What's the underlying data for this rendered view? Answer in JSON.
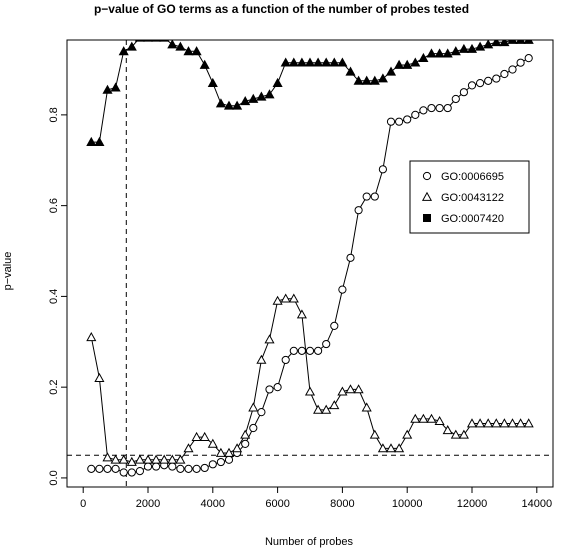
{
  "chart_data": {
    "type": "line",
    "title": "p−value of GO terms as a function of the number of probes tested",
    "xlabel": "Number of probes",
    "ylabel": "p−value",
    "xlim": [
      -500,
      14500
    ],
    "ylim": [
      -0.02,
      0.965
    ],
    "xticks": [
      0,
      2000,
      4000,
      6000,
      8000,
      10000,
      12000,
      14000
    ],
    "xtick_labels": [
      "0",
      "2000",
      "4000",
      "6000",
      "8000",
      "10000",
      "12000",
      "14000"
    ],
    "yticks": [
      0.0,
      0.2,
      0.4,
      0.6,
      0.8
    ],
    "ytick_labels": [
      "0.0",
      "0.2",
      "0.4",
      "0.6",
      "0.8"
    ],
    "reference_lines": [
      {
        "orientation": "horizontal",
        "value": 0.05,
        "style": "dashed"
      },
      {
        "orientation": "vertical",
        "value": 1330,
        "style": "dashed"
      }
    ],
    "legend_position": "right",
    "series": [
      {
        "name": "GO:0006695",
        "marker": "open-circle",
        "x": [
          250,
          500,
          750,
          1000,
          1250,
          1500,
          1750,
          2000,
          2250,
          2500,
          2750,
          3000,
          3250,
          3500,
          3750,
          4000,
          4250,
          4500,
          4750,
          5000,
          5250,
          5500,
          5750,
          6000,
          6250,
          6500,
          6750,
          7000,
          7250,
          7500,
          7750,
          8000,
          8250,
          8500,
          8750,
          9000,
          9250,
          9500,
          9750,
          10000,
          10250,
          10500,
          10750,
          11000,
          11250,
          11500,
          11750,
          12000,
          12250,
          12500,
          12750,
          13000,
          13250,
          13500,
          13750
        ],
        "y": [
          0.02,
          0.02,
          0.02,
          0.02,
          0.012,
          0.012,
          0.015,
          0.025,
          0.025,
          0.028,
          0.025,
          0.02,
          0.02,
          0.02,
          0.022,
          0.03,
          0.035,
          0.04,
          0.055,
          0.075,
          0.11,
          0.145,
          0.195,
          0.2,
          0.26,
          0.28,
          0.28,
          0.28,
          0.28,
          0.295,
          0.335,
          0.415,
          0.485,
          0.59,
          0.62,
          0.62,
          0.68,
          0.785,
          0.785,
          0.79,
          0.8,
          0.81,
          0.815,
          0.815,
          0.815,
          0.835,
          0.85,
          0.865,
          0.87,
          0.875,
          0.88,
          0.89,
          0.9,
          0.915,
          0.925
        ]
      },
      {
        "name": "GO:0043122",
        "marker": "open-triangle",
        "x": [
          250,
          500,
          750,
          1000,
          1250,
          1500,
          1750,
          2000,
          2250,
          2500,
          2750,
          3000,
          3250,
          3500,
          3750,
          4000,
          4250,
          4500,
          4750,
          5000,
          5250,
          5500,
          5750,
          6000,
          6250,
          6500,
          6750,
          7000,
          7250,
          7500,
          7750,
          8000,
          8250,
          8500,
          8750,
          9000,
          9250,
          9500,
          9750,
          10000,
          10250,
          10500,
          10750,
          11000,
          11250,
          11500,
          11750,
          12000,
          12250,
          12500,
          12750,
          13000,
          13250,
          13500,
          13750
        ],
        "y": [
          0.31,
          0.22,
          0.045,
          0.04,
          0.04,
          0.035,
          0.04,
          0.04,
          0.04,
          0.04,
          0.04,
          0.04,
          0.065,
          0.09,
          0.09,
          0.075,
          0.055,
          0.055,
          0.065,
          0.095,
          0.155,
          0.26,
          0.305,
          0.39,
          0.395,
          0.395,
          0.36,
          0.19,
          0.15,
          0.15,
          0.16,
          0.19,
          0.195,
          0.195,
          0.155,
          0.095,
          0.065,
          0.065,
          0.065,
          0.095,
          0.13,
          0.13,
          0.13,
          0.125,
          0.105,
          0.095,
          0.095,
          0.12,
          0.12,
          0.12,
          0.12,
          0.12,
          0.12,
          0.12,
          0.12
        ]
      },
      {
        "name": "GO:0007420",
        "marker": "filled-triangle",
        "x": [
          250,
          500,
          750,
          1000,
          1250,
          1500,
          1750,
          2000,
          2250,
          2500,
          2750,
          3000,
          3250,
          3500,
          3750,
          4000,
          4250,
          4500,
          4750,
          5000,
          5250,
          5500,
          5750,
          6000,
          6250,
          6500,
          6750,
          7000,
          7250,
          7500,
          7750,
          8000,
          8250,
          8500,
          8750,
          9000,
          9250,
          9500,
          9750,
          10000,
          10250,
          10500,
          10750,
          11000,
          11250,
          11500,
          11750,
          12000,
          12250,
          12500,
          12750,
          13000,
          13250,
          13500,
          13750
        ],
        "y": [
          0.74,
          0.74,
          0.855,
          0.86,
          0.94,
          0.95,
          0.97,
          0.97,
          0.97,
          0.97,
          0.955,
          0.95,
          0.94,
          0.94,
          0.91,
          0.87,
          0.825,
          0.82,
          0.82,
          0.83,
          0.835,
          0.84,
          0.845,
          0.87,
          0.915,
          0.915,
          0.915,
          0.915,
          0.915,
          0.915,
          0.915,
          0.915,
          0.895,
          0.875,
          0.875,
          0.875,
          0.88,
          0.895,
          0.91,
          0.91,
          0.915,
          0.925,
          0.935,
          0.935,
          0.935,
          0.94,
          0.945,
          0.945,
          0.95,
          0.955,
          0.96,
          0.96,
          0.965,
          0.965,
          0.965
        ]
      }
    ]
  }
}
